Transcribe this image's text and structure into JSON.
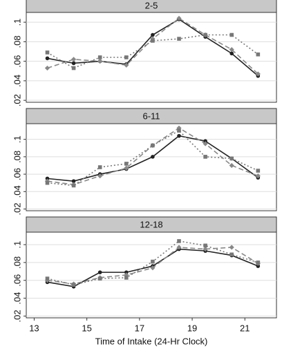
{
  "chart_data": [
    {
      "type": "line",
      "title": "2-5",
      "x": [
        13.5,
        14.5,
        15.5,
        16.5,
        17.5,
        18.5,
        19.5,
        20.5,
        21.5
      ],
      "series": [
        {
          "color": "#222222",
          "dash": "solid",
          "marker": "circle",
          "values": [
            0.063,
            0.058,
            0.06,
            0.057,
            0.087,
            0.103,
            0.085,
            0.068,
            0.045
          ]
        },
        {
          "color": "#888888",
          "dash": "dashed",
          "marker": "diamond",
          "values": [
            0.053,
            0.062,
            0.06,
            0.056,
            0.083,
            0.104,
            0.087,
            0.072,
            0.047
          ]
        },
        {
          "color": "#777777",
          "dash": "dotted",
          "marker": "square",
          "values": [
            0.069,
            0.053,
            0.064,
            0.064,
            0.081,
            0.083,
            0.087,
            0.087,
            0.067
          ]
        }
      ],
      "xlim": [
        12.7,
        22.2
      ],
      "ylim": [
        0.018,
        0.11
      ],
      "yticks": [
        {
          "value": 0.02,
          "label": ".02"
        },
        {
          "value": 0.04,
          "label": ".04"
        },
        {
          "value": 0.06,
          "label": ".06"
        },
        {
          "value": 0.08,
          "label": ".08"
        },
        {
          "value": 0.1,
          "label": ".1"
        }
      ],
      "grid": true
    },
    {
      "type": "line",
      "title": "6-11",
      "x": [
        13.5,
        14.5,
        15.5,
        16.5,
        17.5,
        18.5,
        19.5,
        20.5,
        21.5
      ],
      "series": [
        {
          "color": "#222222",
          "dash": "solid",
          "marker": "circle",
          "values": [
            0.055,
            0.052,
            0.06,
            0.066,
            0.08,
            0.104,
            0.098,
            0.078,
            0.056
          ]
        },
        {
          "color": "#888888",
          "dash": "dashed",
          "marker": "diamond",
          "values": [
            0.052,
            0.048,
            0.058,
            0.067,
            0.093,
            0.113,
            0.095,
            0.07,
            0.058
          ]
        },
        {
          "color": "#777777",
          "dash": "dotted",
          "marker": "square",
          "values": [
            0.05,
            0.047,
            0.068,
            0.072,
            0.093,
            0.11,
            0.08,
            0.078,
            0.064
          ]
        }
      ],
      "xlim": [
        12.7,
        22.2
      ],
      "ylim": [
        0.018,
        0.118
      ],
      "yticks": [
        {
          "value": 0.02,
          "label": ".02"
        },
        {
          "value": 0.04,
          "label": ".04"
        },
        {
          "value": 0.06,
          "label": ".06"
        },
        {
          "value": 0.08,
          "label": ".08"
        },
        {
          "value": 0.1,
          "label": ".1"
        }
      ],
      "grid": true
    },
    {
      "type": "line",
      "title": "12-18",
      "x": [
        13.5,
        14.5,
        15.5,
        16.5,
        17.5,
        18.5,
        19.5,
        20.5,
        21.5
      ],
      "series": [
        {
          "color": "#222222",
          "dash": "solid",
          "marker": "circle",
          "values": [
            0.058,
            0.053,
            0.069,
            0.069,
            0.076,
            0.095,
            0.093,
            0.088,
            0.076
          ]
        },
        {
          "color": "#888888",
          "dash": "dashed",
          "marker": "diamond",
          "values": [
            0.06,
            0.056,
            0.063,
            0.066,
            0.074,
            0.097,
            0.095,
            0.097,
            0.079
          ]
        },
        {
          "color": "#777777",
          "dash": "dotted",
          "marker": "square",
          "values": [
            0.062,
            0.055,
            0.062,
            0.063,
            0.081,
            0.104,
            0.099,
            0.089,
            0.08
          ]
        }
      ],
      "xlim": [
        12.7,
        22.2
      ],
      "ylim": [
        0.018,
        0.114
      ],
      "yticks": [
        {
          "value": 0.02,
          "label": ".02"
        },
        {
          "value": 0.04,
          "label": ".04"
        },
        {
          "value": 0.06,
          "label": ".06"
        },
        {
          "value": 0.08,
          "label": ".08"
        },
        {
          "value": 0.1,
          "label": ".1"
        }
      ],
      "grid": true,
      "xticks": [
        13,
        15,
        17,
        19,
        21
      ],
      "x_label": "Time of Intake (24-Hr Clock)"
    }
  ]
}
